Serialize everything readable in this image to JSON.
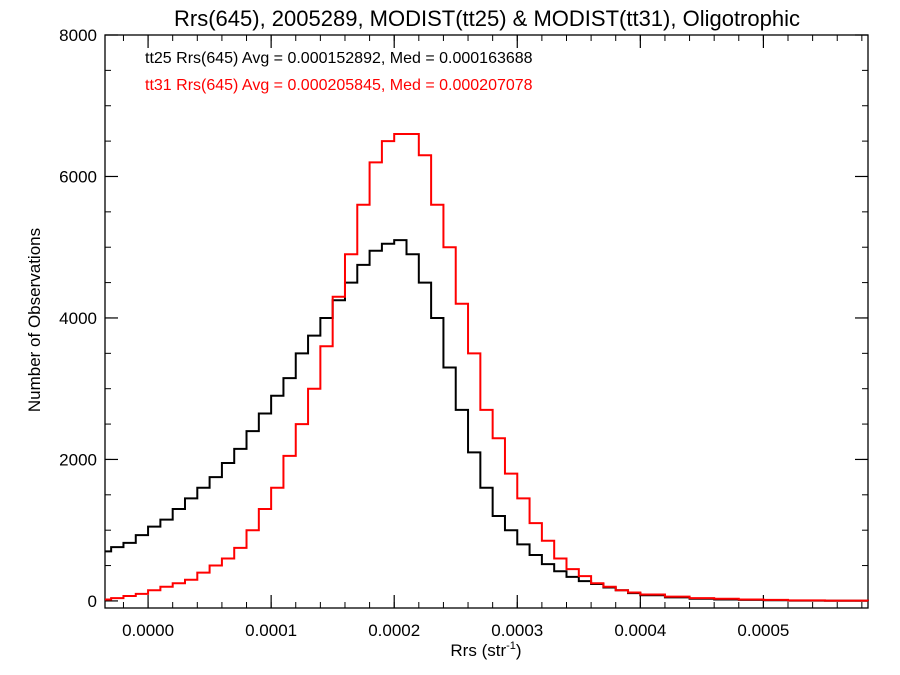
{
  "chart_data": {
    "type": "line",
    "title": "Rrs(645), 2005289, MODIST(tt25) & MODIST(tt31), Oligotrophic",
    "xlabel": "Rrs (str",
    "xlabel_sup": "-1",
    "xlabel_end": ")",
    "ylabel": "Number of Observations",
    "xlim": [
      -3.5e-05,
      0.000585
    ],
    "ylim": [
      -100,
      8000
    ],
    "x_ticks": [
      0.0,
      0.0001,
      0.0002,
      0.0003,
      0.0004,
      0.0005
    ],
    "x_tick_labels": [
      "0.0000",
      "0.0001",
      "0.0002",
      "0.0003",
      "0.0004",
      "0.0005"
    ],
    "y_ticks": [
      0,
      2000,
      4000,
      6000,
      8000
    ],
    "y_tick_labels": [
      "0",
      "2000",
      "4000",
      "6000",
      "8000"
    ],
    "grid": false,
    "legend_position": "top-left",
    "series": [
      {
        "label": "tt25 Rrs(645) Avg = 0.000152892, Med = 0.000163688",
        "color": "#000000",
        "x": [
          -3.5e-05,
          -3e-05,
          -2e-05,
          -1e-05,
          0.0,
          1e-05,
          2e-05,
          3e-05,
          4e-05,
          5e-05,
          6e-05,
          7e-05,
          8e-05,
          9e-05,
          0.0001,
          0.00011,
          0.00012,
          0.00013,
          0.00014,
          0.00015,
          0.00016,
          0.00017,
          0.00018,
          0.00019,
          0.0002,
          0.00021,
          0.00022,
          0.00023,
          0.00024,
          0.00025,
          0.00026,
          0.00027,
          0.00028,
          0.00029,
          0.0003,
          0.00031,
          0.00032,
          0.00033,
          0.00034,
          0.00035,
          0.00036,
          0.00037,
          0.00038,
          0.00039,
          0.0004,
          0.00042,
          0.00044,
          0.00046,
          0.00048,
          0.0005,
          0.00052,
          0.00055,
          0.000585
        ],
        "y": [
          700,
          760,
          820,
          930,
          1050,
          1150,
          1300,
          1450,
          1600,
          1750,
          1950,
          2150,
          2400,
          2650,
          2900,
          3150,
          3500,
          3750,
          4000,
          4250,
          4500,
          4750,
          4950,
          5050,
          5100,
          4900,
          4500,
          4000,
          3300,
          2700,
          2100,
          1600,
          1200,
          1000,
          800,
          650,
          520,
          420,
          340,
          280,
          240,
          190,
          150,
          110,
          80,
          50,
          30,
          20,
          15,
          10,
          5,
          3,
          2
        ]
      },
      {
        "label": "tt31 Rrs(645) Avg = 0.000205845, Med = 0.000207078",
        "color": "#ff0000",
        "x": [
          -3.5e-05,
          -3e-05,
          -2e-05,
          -1e-05,
          0.0,
          1e-05,
          2e-05,
          3e-05,
          4e-05,
          5e-05,
          6e-05,
          7e-05,
          8e-05,
          9e-05,
          0.0001,
          0.00011,
          0.00012,
          0.00013,
          0.00014,
          0.00015,
          0.00016,
          0.00017,
          0.00018,
          0.00019,
          0.0002,
          0.00021,
          0.00022,
          0.00023,
          0.00024,
          0.00025,
          0.00026,
          0.00027,
          0.00028,
          0.00029,
          0.0003,
          0.00031,
          0.00032,
          0.00033,
          0.00034,
          0.00035,
          0.00036,
          0.00037,
          0.00038,
          0.00039,
          0.0004,
          0.00042,
          0.00044,
          0.00046,
          0.00048,
          0.0005,
          0.00052,
          0.00055,
          0.000585
        ],
        "y": [
          20,
          40,
          70,
          100,
          150,
          200,
          250,
          300,
          400,
          500,
          600,
          750,
          1000,
          1300,
          1600,
          2050,
          2500,
          3000,
          3600,
          4300,
          4900,
          5600,
          6200,
          6500,
          6600,
          6600,
          6300,
          5600,
          5000,
          4200,
          3500,
          2700,
          2300,
          1800,
          1450,
          1100,
          850,
          600,
          450,
          350,
          250,
          200,
          150,
          120,
          90,
          60,
          40,
          30,
          20,
          15,
          8,
          5,
          2
        ]
      }
    ]
  }
}
